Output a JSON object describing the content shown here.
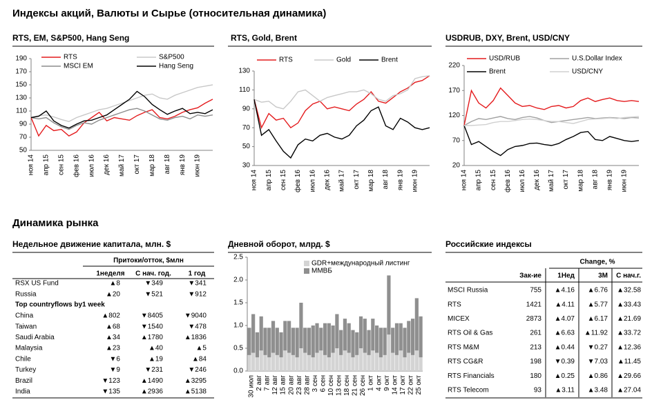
{
  "header": {
    "title": "Индексы акций, Валюты и  Сырье (относительная динамика)",
    "section": "Динамика рынка"
  },
  "chart_data": [
    {
      "type": "line",
      "title": "RTS, EM, S&P500, Hang Seng",
      "categories": [
        "ноя 14",
        null,
        "апр 15",
        null,
        "сен 15",
        null,
        "фев 16",
        null,
        "июл 16",
        null,
        "дек 16",
        null,
        "май 17",
        null,
        "окт 17",
        null,
        "мар 18",
        null,
        "авг 18",
        null,
        "янв 19",
        null,
        "июн 19",
        null,
        null
      ],
      "ylim": [
        50,
        190
      ],
      "yticks": [
        50,
        70,
        90,
        110,
        130,
        150,
        170,
        190
      ],
      "grid": false,
      "series": [
        {
          "name": "RTS",
          "color": "#e41a1c",
          "values": [
            100,
            72,
            88,
            80,
            82,
            72,
            78,
            92,
            100,
            108,
            95,
            100,
            98,
            96,
            103,
            108,
            112,
            100,
            98,
            102,
            108,
            112,
            115,
            122,
            128
          ]
        },
        {
          "name": "S&P500",
          "color": "#c8c8c8",
          "values": [
            100,
            103,
            104,
            101,
            97,
            94,
            100,
            104,
            108,
            112,
            114,
            118,
            122,
            126,
            130,
            134,
            136,
            130,
            128,
            134,
            138,
            142,
            146,
            148,
            150
          ]
        },
        {
          "name": "MSCI EM",
          "color": "#8c8c8c",
          "values": [
            100,
            98,
            100,
            92,
            86,
            82,
            88,
            92,
            90,
            96,
            100,
            104,
            108,
            112,
            114,
            110,
            104,
            98,
            96,
            100,
            102,
            98,
            104,
            102,
            104
          ]
        },
        {
          "name": "Hang Seng",
          "color": "#000000",
          "values": [
            100,
            102,
            110,
            95,
            88,
            84,
            90,
            95,
            96,
            100,
            104,
            112,
            120,
            128,
            140,
            132,
            120,
            112,
            105,
            110,
            114,
            106,
            108,
            106,
            112
          ]
        }
      ]
    },
    {
      "type": "line",
      "title": "RTS, Gold, Brent",
      "categories": [
        "ноя 14",
        null,
        "апр 15",
        null,
        "сен 15",
        null,
        "фев 16",
        null,
        "июл 16",
        null,
        "дек 16",
        null,
        "май 17",
        null,
        "окт 17",
        null,
        "мар 18",
        null,
        "авг 18",
        null,
        "янв 19",
        null,
        "июн 19",
        null,
        null
      ],
      "ylim": [
        30,
        130
      ],
      "yticks": [
        30,
        50,
        70,
        90,
        110,
        130
      ],
      "grid": false,
      "series": [
        {
          "name": "RTS",
          "color": "#e41a1c",
          "values": [
            100,
            70,
            85,
            78,
            80,
            70,
            75,
            88,
            95,
            98,
            90,
            92,
            90,
            88,
            95,
            100,
            108,
            98,
            96,
            102,
            108,
            112,
            118,
            120,
            125
          ]
        },
        {
          "name": "Gold",
          "color": "#c8c8c8",
          "values": [
            100,
            97,
            98,
            92,
            90,
            98,
            108,
            110,
            104,
            98,
            102,
            104,
            106,
            108,
            108,
            110,
            106,
            100,
            98,
            104,
            106,
            110,
            122,
            124,
            125
          ]
        },
        {
          "name": "Brent",
          "color": "#000000",
          "values": [
            100,
            62,
            68,
            56,
            45,
            38,
            52,
            58,
            56,
            62,
            64,
            60,
            58,
            62,
            72,
            78,
            88,
            92,
            72,
            68,
            80,
            76,
            70,
            68,
            70
          ]
        }
      ]
    },
    {
      "type": "line",
      "title": "USDRUB, DXY, Brent, USD/CNY",
      "categories": [
        "ноя 14",
        null,
        "апр 15",
        null,
        "сен 15",
        null,
        "фев 16",
        null,
        "июл 16",
        null,
        "дек 16",
        null,
        "май 17",
        null,
        "окт 17",
        null,
        "мар 18",
        null,
        "авг 18",
        null,
        "янв 19",
        null,
        "июн 19",
        null,
        null
      ],
      "ylim": [
        20,
        220
      ],
      "yticks": [
        20,
        70,
        120,
        170,
        220
      ],
      "grid": false,
      "series": [
        {
          "name": "USD/RUB",
          "color": "#e41a1c",
          "values": [
            100,
            170,
            145,
            135,
            150,
            175,
            160,
            145,
            138,
            140,
            135,
            132,
            138,
            140,
            135,
            138,
            150,
            155,
            148,
            152,
            155,
            150,
            148,
            150,
            148
          ]
        },
        {
          "name": "U.S.Dollar Index",
          "color": "#a0a0a0",
          "values": [
            100,
            108,
            114,
            112,
            115,
            118,
            114,
            112,
            116,
            118,
            115,
            110,
            106,
            108,
            110,
            112,
            114,
            116,
            114,
            115,
            116,
            115,
            114,
            116,
            115
          ]
        },
        {
          "name": "Brent",
          "color": "#000000",
          "values": [
            100,
            62,
            68,
            58,
            48,
            40,
            52,
            58,
            60,
            64,
            65,
            62,
            60,
            64,
            72,
            78,
            86,
            88,
            72,
            70,
            78,
            74,
            70,
            68,
            70
          ]
        },
        {
          "name": "USD/CNY",
          "color": "#d0d0d0",
          "values": [
            100,
            100,
            101,
            102,
            106,
            108,
            108,
            110,
            112,
            113,
            112,
            110,
            108,
            108,
            106,
            104,
            108,
            112,
            113,
            114,
            115,
            114,
            116,
            117,
            118
          ]
        }
      ]
    },
    {
      "type": "stacked-bar",
      "title": "Дневной оборот, млрд. $",
      "categories": [
        "30 июл",
        null,
        "2 авг",
        null,
        "7 авг",
        null,
        "12 авг",
        null,
        "15 авг",
        null,
        "20 авг",
        null,
        "23 авг",
        null,
        "28 авг",
        null,
        "3 сен",
        null,
        "6 сен",
        null,
        "10 сен",
        null,
        "13 сен",
        null,
        "18 сен",
        null,
        "21 сен",
        null,
        "26 сен",
        null,
        "1 окт",
        null,
        "4 окт",
        null,
        "9 окт",
        null,
        "14 окт",
        null,
        "17 окт",
        null,
        "22 окт",
        null,
        "25 окт",
        null
      ],
      "ylim": [
        0,
        2.5
      ],
      "yticks": [
        {
          "value": 0,
          "label": "0.0"
        },
        0.5,
        {
          "value": 1,
          "label": "1.0"
        },
        1.5,
        {
          "value": 2,
          "label": "2.0"
        },
        2.5
      ],
      "grid": false,
      "series": [
        {
          "name": "GDR+международный  листинг",
          "color": "#d4d4d4",
          "values": [
            0.35,
            0.4,
            0.3,
            0.45,
            0.35,
            0.3,
            0.4,
            0.35,
            0.3,
            0.45,
            0.4,
            0.35,
            0.3,
            0.5,
            0.4,
            0.35,
            0.3,
            0.4,
            0.45,
            0.35,
            0.3,
            0.4,
            0.5,
            0.35,
            0.45,
            0.4,
            0.3,
            0.35,
            0.5,
            0.4,
            0.35,
            0.45,
            0.4,
            0.3,
            0.35,
            0.8,
            0.4,
            0.35,
            0.45,
            0.3,
            0.4,
            0.35,
            0.45,
            0.3
          ]
        },
        {
          "name": "ММВБ",
          "color": "#8f8f8f",
          "values": [
            0.6,
            0.85,
            0.55,
            0.75,
            0.6,
            0.65,
            0.7,
            0.6,
            0.55,
            0.65,
            0.7,
            0.6,
            0.65,
            1.0,
            0.55,
            0.6,
            0.7,
            0.65,
            0.5,
            0.7,
            0.75,
            0.6,
            0.75,
            0.55,
            0.7,
            0.65,
            0.6,
            0.5,
            0.7,
            0.75,
            0.55,
            0.7,
            0.6,
            0.65,
            0.6,
            1.3,
            0.55,
            0.7,
            0.6,
            0.65,
            0.7,
            0.8,
            1.15,
            0.9
          ]
        }
      ]
    }
  ],
  "flows": {
    "title": "Недельное движение капитала, млн. $",
    "group": "Притоки/отток, $млн",
    "columns": [
      "1неделя",
      "С нач. год.",
      "1 год"
    ],
    "rows": [
      [
        "RSX US Fund",
        "▲8",
        "▼349",
        "▼341"
      ],
      [
        "Russia",
        "▲20",
        "▼521",
        "▼912"
      ]
    ],
    "subheading": "Top countryflows by1 week",
    "rows2": [
      [
        "China",
        "▲802",
        "▼8405",
        "▼9040"
      ],
      [
        "Taiwan",
        "▲68",
        "▼1540",
        "▼478"
      ],
      [
        "Saudi Arabia",
        "▲34",
        "▲1780",
        "▲1836"
      ],
      [
        "Malaysia",
        "▲23",
        "▲40",
        "▲5"
      ],
      [
        "Chile",
        "▼6",
        "▲19",
        "▲84"
      ],
      [
        "Turkey",
        "▼9",
        "▼231",
        "▼246"
      ],
      [
        "Brazil",
        "▼123",
        "▲1490",
        "▲3295"
      ],
      [
        "India",
        "▼135",
        "▲2936",
        "▲5138"
      ]
    ]
  },
  "indices": {
    "title": "Российские индексы",
    "group": "Change, %",
    "columns": [
      "Зак-ие",
      "1Нед",
      "3М",
      "С нач.г."
    ],
    "rows": [
      [
        "MSCI Russia",
        "755",
        "▲4.16",
        "▲6.76",
        "▲32.58"
      ],
      [
        "RTS",
        "1421",
        "▲4.11",
        "▲5.77",
        "▲33.43"
      ],
      [
        "MICEX",
        "2873",
        "▲4.07",
        "▲6.17",
        "▲21.69"
      ],
      [
        "RTS Oil & Gas",
        "261",
        "▲6.63",
        "▲11.92",
        "▲33.72"
      ],
      [
        "RTS M&M",
        "213",
        "▲0.44",
        "▼0.27",
        "▲12.36"
      ],
      [
        "RTS CG&R",
        "198",
        "▼0.39",
        "▼7.03",
        "▲11.45"
      ],
      [
        "RTS Financials",
        "180",
        "▲0.25",
        "▲0.86",
        "▲29.66"
      ],
      [
        "RTS Telecom",
        "93",
        "▲3.11",
        "▲3.48",
        "▲27.04"
      ]
    ]
  }
}
